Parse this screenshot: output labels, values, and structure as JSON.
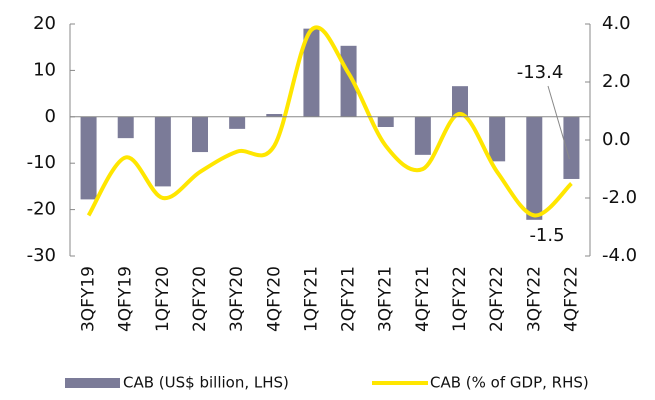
{
  "chart_data": {
    "type": "bar",
    "categories": [
      "3QFY19",
      "4QFY19",
      "1QFY20",
      "2QFY20",
      "3QFY20",
      "4QFY20",
      "1QFY21",
      "2QFY21",
      "3QFY21",
      "4QFY21",
      "1QFY22",
      "2QFY22",
      "3QFY22",
      "4QFY22"
    ],
    "series": [
      {
        "name": "CAB (US$ billion, LHS)",
        "type": "bar",
        "color": "#7b7b98",
        "values": [
          -17.8,
          -4.6,
          -15.0,
          -7.6,
          -2.6,
          0.6,
          19.0,
          15.3,
          -2.2,
          -8.2,
          6.6,
          -9.6,
          -22.2,
          -13.4
        ]
      },
      {
        "name": "CAB (% of GDP, RHS)",
        "type": "line",
        "axis": "y2",
        "color": "#ffe600",
        "values": [
          -2.6,
          -0.6,
          -2.0,
          -1.1,
          -0.4,
          -0.2,
          3.8,
          2.3,
          -0.2,
          -1.0,
          0.9,
          -1.1,
          -2.6,
          -1.5
        ]
      }
    ],
    "ylim": [
      -30,
      20
    ],
    "yticks": [
      -30,
      -20,
      -10,
      0,
      10,
      20
    ],
    "y2lim": [
      -4,
      4
    ],
    "y2ticks": [
      {
        "value": -4,
        "label": "-4.0"
      },
      {
        "value": -2,
        "label": "-2.0"
      },
      {
        "value": 0,
        "label": "0.0"
      },
      {
        "value": 2,
        "label": "2.0"
      },
      {
        "value": 4,
        "label": "4.0"
      }
    ],
    "legend": "bottom"
  }
}
